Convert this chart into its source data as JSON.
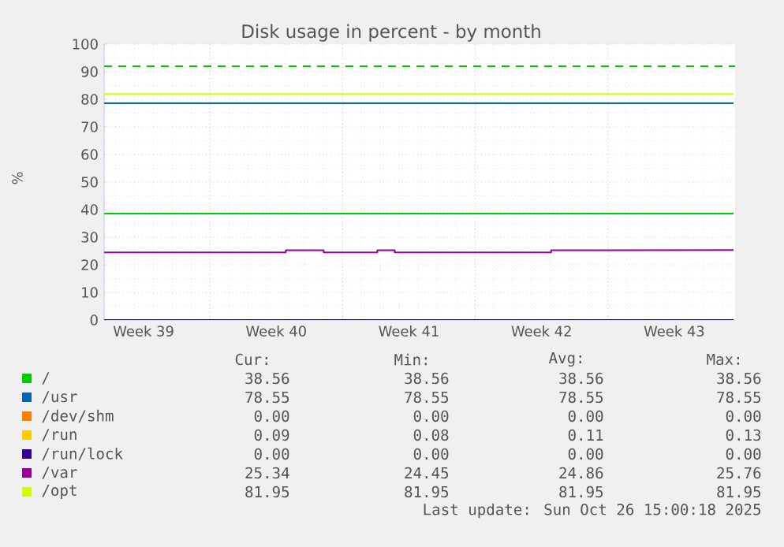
{
  "chart_data": {
    "type": "line",
    "title": "Disk usage in percent - by month",
    "ylabel": "%",
    "xlim": [
      "2025-09-23T10:00",
      "2025-10-26T17:00"
    ],
    "ylim": [
      0,
      100
    ],
    "xticks": [
      {
        "value": "2025-09-29",
        "label": null
      },
      {
        "value": "2025-10-06",
        "label": null
      },
      {
        "value": "2025-10-13",
        "label": null
      },
      {
        "value": "2025-10-20",
        "label": null
      },
      {
        "value": "2025-09-25T12:00",
        "label": "Week 39"
      },
      {
        "value": "2025-10-02T12:00",
        "label": "Week 40"
      },
      {
        "value": "2025-10-09T12:00",
        "label": "Week 41"
      },
      {
        "value": "2025-10-16T12:00",
        "label": "Week 42"
      },
      {
        "value": "2025-10-23T12:00",
        "label": "Week 43"
      }
    ],
    "yticks": [
      0,
      10,
      20,
      30,
      40,
      50,
      60,
      70,
      80,
      90,
      100
    ],
    "grid": true,
    "legend": "bottom",
    "marker": "none",
    "line_style": "solid",
    "series": [
      {
        "name": "/",
        "color": "#00cc00",
        "x": [
          "2025-09-23T10:00",
          "2025-10-26T15:00"
        ],
        "values": [
          38.56,
          38.56
        ]
      },
      {
        "name": "/usr",
        "color": "#0066b3",
        "x": [
          "2025-09-23T10:00",
          "2025-10-26T15:00"
        ],
        "values": [
          78.55,
          78.55
        ]
      },
      {
        "name": "/dev/shm",
        "color": "#ff8000"
      },
      {
        "name": "/run",
        "color": "#ffcc00"
      },
      {
        "name": "/run/lock",
        "color": "#330099",
        "x": [
          "2025-09-23T10:00",
          "2025-10-26T15:00"
        ],
        "values": [
          0,
          0
        ]
      },
      {
        "name": "/var",
        "color": "#990099",
        "x": [
          "2025-09-23T10:00",
          "2025-10-03",
          "2025-10-03",
          "2025-10-05",
          "2025-10-05",
          "2025-10-07",
          "2025-10-07",
          "2025-10-07T20:00",
          "2025-10-07T20:00",
          "2025-10-08T18:00",
          "2025-10-08T18:00",
          "2025-10-17",
          "2025-10-17",
          "2025-10-26T15:00"
        ],
        "values": [
          24.5,
          24.5,
          25.3,
          25.3,
          24.5,
          24.5,
          24.5,
          24.5,
          25.3,
          25.3,
          24.5,
          24.5,
          25.3,
          25.34
        ]
      },
      {
        "name": "/opt",
        "color": "#ccff00",
        "x": [
          "2025-09-23T10:00",
          "2025-10-26T15:00"
        ],
        "values": [
          81.95,
          81.95
        ]
      }
    ],
    "ref_lines": [
      {
        "axis": "y",
        "value": 92,
        "color": "#00cc00",
        "line_style": "dashed"
      }
    ],
    "annotations": [
      "Cur:",
      "Min:",
      "Avg:",
      "Max:",
      "38.56",
      "38.56",
      "38.56",
      "38.56",
      "78.55",
      "78.55",
      "78.55",
      "78.55",
      "0.00",
      "0.00",
      "0.00",
      "0.00",
      "0.09",
      "0.08",
      "0.11",
      "0.13",
      "0.00",
      "0.00",
      "0.00",
      "0.00",
      "25.34",
      "24.45",
      "24.86",
      "25.76",
      "81.95",
      "81.95",
      "81.95",
      "81.95",
      "Last update: Sun Oct 26 15:00:18 2025"
    ]
  }
}
